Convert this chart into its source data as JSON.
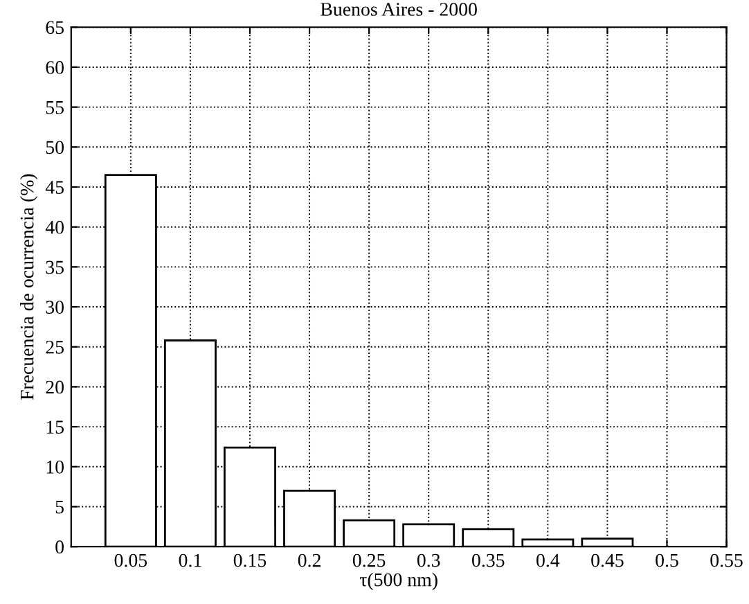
{
  "chart_data": {
    "type": "bar",
    "title": "Buenos Aires - 2000",
    "xlabel": "τ(500 nm)",
    "ylabel": "Frecuencia de ocurrencia (%)",
    "x": [
      0.05,
      0.1,
      0.15,
      0.2,
      0.25,
      0.3,
      0.35,
      0.4,
      0.45
    ],
    "values": [
      46.5,
      25.8,
      12.4,
      7.0,
      3.3,
      2.8,
      2.2,
      0.9,
      1.0
    ],
    "color": "#ffffff",
    "xlim": [
      0,
      0.55
    ],
    "xticks": [
      0.05,
      0.1,
      0.15,
      0.2,
      0.25,
      0.3,
      0.35,
      0.4,
      0.45,
      0.5,
      0.55
    ],
    "ylim": [
      0,
      65
    ],
    "yticks": [
      0,
      5,
      10,
      15,
      20,
      25,
      30,
      35,
      40,
      45,
      50,
      55,
      60,
      65
    ],
    "grid": true,
    "line_style": "dotted"
  }
}
